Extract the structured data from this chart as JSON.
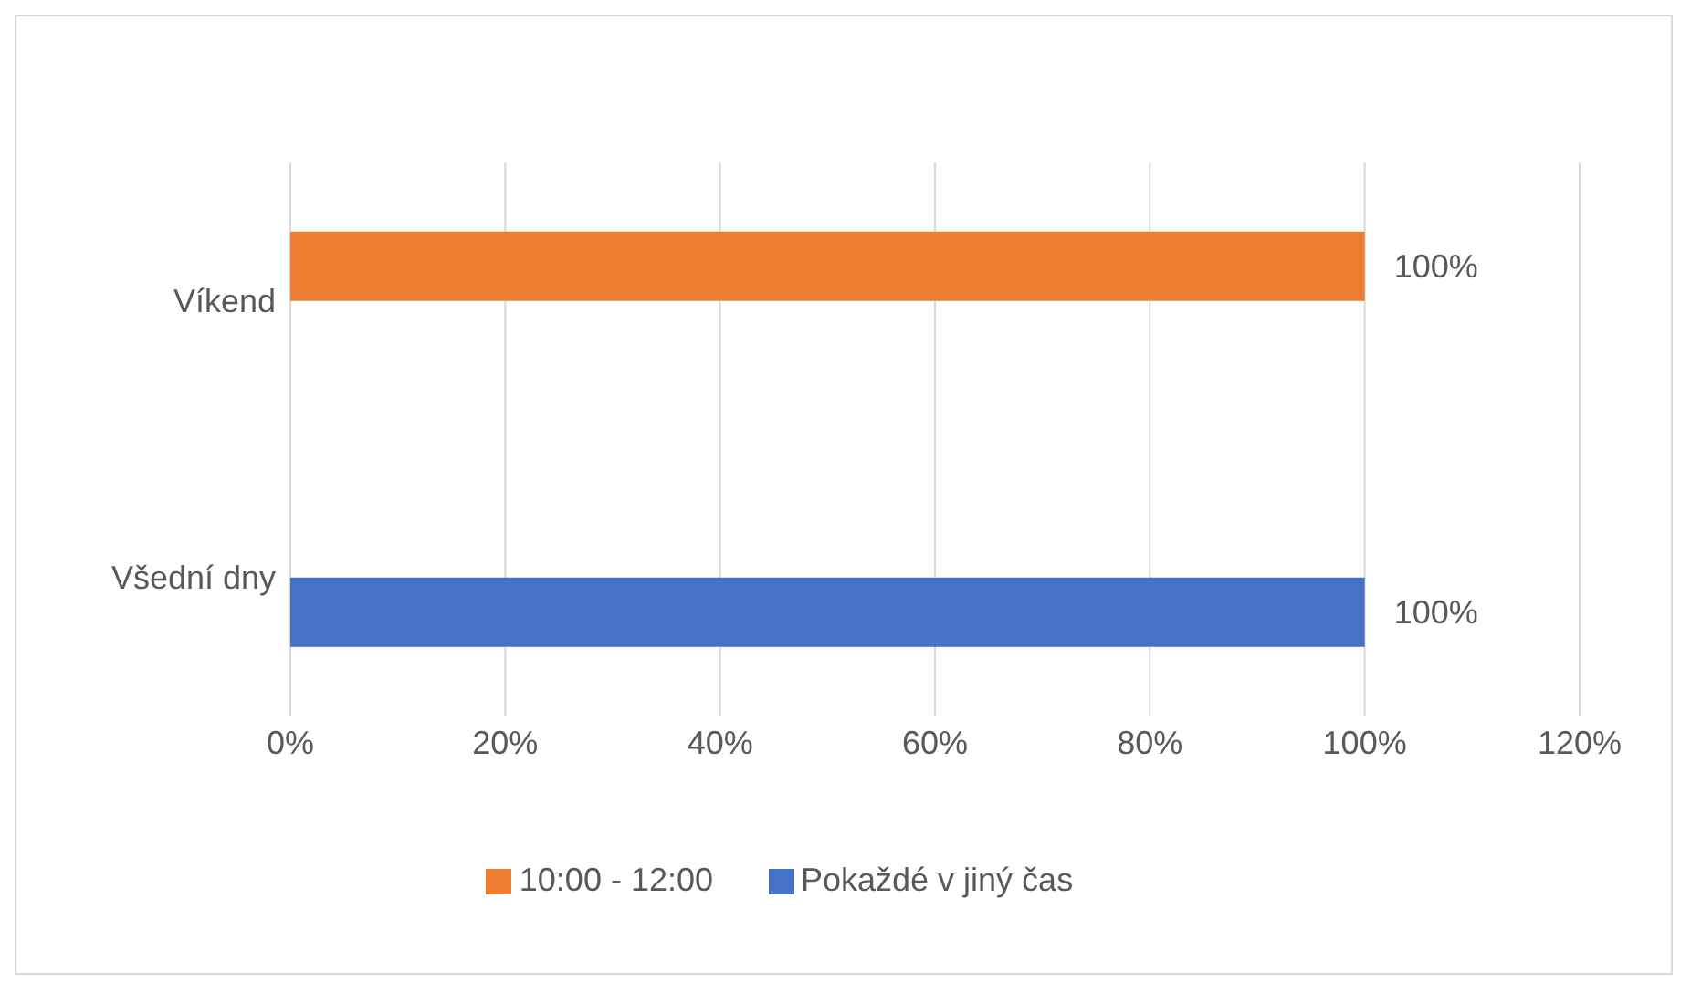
{
  "chart_data": {
    "type": "bar",
    "orientation": "horizontal",
    "categories": [
      "Víkend",
      "Všední dny"
    ],
    "series": [
      {
        "name": "10:00 - 12:00",
        "color": "#ed7d31",
        "values": [
          100,
          null
        ],
        "value_labels": [
          "100%",
          null
        ]
      },
      {
        "name": "Pokaždé v jiný čas",
        "color": "#4472c4",
        "values": [
          null,
          100
        ],
        "value_labels": [
          null,
          "100%"
        ]
      }
    ],
    "xlim": [
      0,
      120
    ],
    "xticks": [
      {
        "value": 0,
        "label": "0%"
      },
      {
        "value": 20,
        "label": "20%"
      },
      {
        "value": 40,
        "label": "40%"
      },
      {
        "value": 60,
        "label": "60%"
      },
      {
        "value": 80,
        "label": "80%"
      },
      {
        "value": 100,
        "label": "100%"
      },
      {
        "value": 120,
        "label": "120%"
      }
    ],
    "grid": "x",
    "legend": "bottom"
  }
}
